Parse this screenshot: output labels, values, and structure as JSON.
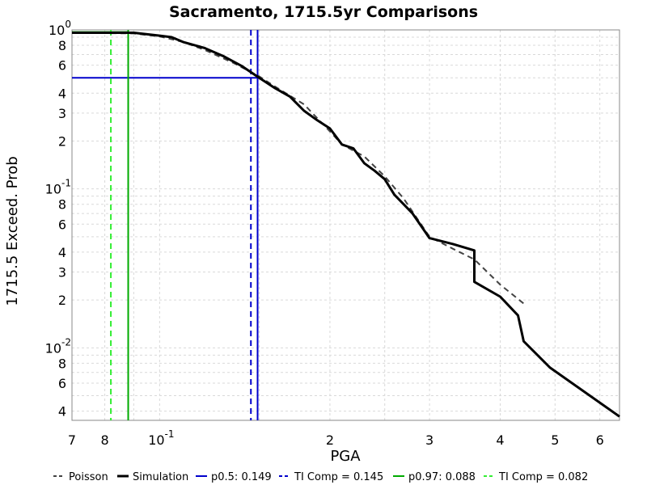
{
  "chart_data": {
    "type": "line",
    "title": "Sacramento, 1715.5yr Comparisons",
    "xlabel": "PGA",
    "ylabel": "1715.5 Exceed. Prob",
    "x_scale": "log",
    "y_scale": "log",
    "xlim": [
      0.07,
      0.65
    ],
    "ylim": [
      0.0035,
      1.0
    ],
    "grid": true,
    "legend_position": "bottom",
    "x_ticks": [
      {
        "value": 0.07,
        "label": "7"
      },
      {
        "value": 0.08,
        "label": "8"
      },
      {
        "value": 0.1,
        "base": "10",
        "exp": "-1"
      },
      {
        "value": 0.2,
        "label": "2"
      },
      {
        "value": 0.3,
        "label": "3"
      },
      {
        "value": 0.4,
        "label": "4"
      },
      {
        "value": 0.5,
        "label": "5"
      },
      {
        "value": 0.6,
        "label": "6"
      }
    ],
    "y_ticks": [
      {
        "value": 1.0,
        "base": "10",
        "exp": "0"
      },
      {
        "value": 0.8,
        "label": "8"
      },
      {
        "value": 0.6,
        "label": "6"
      },
      {
        "value": 0.4,
        "label": "4"
      },
      {
        "value": 0.3,
        "label": "3"
      },
      {
        "value": 0.2,
        "label": "2"
      },
      {
        "value": 0.1,
        "base": "10",
        "exp": "-1"
      },
      {
        "value": 0.08,
        "label": "8"
      },
      {
        "value": 0.06,
        "label": "6"
      },
      {
        "value": 0.04,
        "label": "4"
      },
      {
        "value": 0.03,
        "label": "3"
      },
      {
        "value": 0.02,
        "label": "2"
      },
      {
        "value": 0.01,
        "base": "10",
        "exp": "-2"
      },
      {
        "value": 0.008,
        "label": "8"
      },
      {
        "value": 0.006,
        "label": "6"
      },
      {
        "value": 0.004,
        "label": "4"
      }
    ],
    "series": [
      {
        "name": "Poisson",
        "color": "#444444",
        "dash": "dashed",
        "x": [
          0.07,
          0.09,
          0.1,
          0.11,
          0.12,
          0.135,
          0.15,
          0.16,
          0.18,
          0.2,
          0.21,
          0.23,
          0.25,
          0.27,
          0.3,
          0.33,
          0.36,
          0.4,
          0.44
        ],
        "y": [
          0.96,
          0.95,
          0.91,
          0.84,
          0.75,
          0.62,
          0.51,
          0.44,
          0.34,
          0.23,
          0.19,
          0.16,
          0.12,
          0.087,
          0.05,
          0.042,
          0.036,
          0.025,
          0.019
        ]
      },
      {
        "name": "Simulation",
        "color": "#000000",
        "dash": "solid",
        "x": [
          0.07,
          0.09,
          0.1,
          0.105,
          0.11,
          0.12,
          0.13,
          0.14,
          0.15,
          0.16,
          0.17,
          0.18,
          0.19,
          0.2,
          0.21,
          0.22,
          0.23,
          0.24,
          0.25,
          0.26,
          0.27,
          0.28,
          0.3,
          0.33,
          0.36,
          0.36,
          0.4,
          0.43,
          0.44,
          0.49,
          0.65
        ],
        "y": [
          0.96,
          0.96,
          0.92,
          0.9,
          0.84,
          0.77,
          0.68,
          0.59,
          0.5,
          0.43,
          0.38,
          0.31,
          0.27,
          0.24,
          0.19,
          0.18,
          0.145,
          0.13,
          0.115,
          0.092,
          0.08,
          0.07,
          0.049,
          0.045,
          0.041,
          0.026,
          0.021,
          0.016,
          0.011,
          0.0075,
          0.0037
        ]
      }
    ],
    "reference_lines": [
      {
        "name": "p0.5: 0.149",
        "color": "#0000cc",
        "dash": "solid",
        "x": 0.149,
        "y": 0.5
      },
      {
        "name": "TI Comp = 0.145",
        "color": "#0000cc",
        "dash": "dashed",
        "x": 0.145
      },
      {
        "name": "p0.97: 0.088",
        "color": "#00aa00",
        "dash": "solid",
        "x": 0.088,
        "y": 0.97
      },
      {
        "name": "TI Comp = 0.082",
        "color": "#33ee33",
        "dash": "dashed",
        "x": 0.082
      }
    ]
  }
}
